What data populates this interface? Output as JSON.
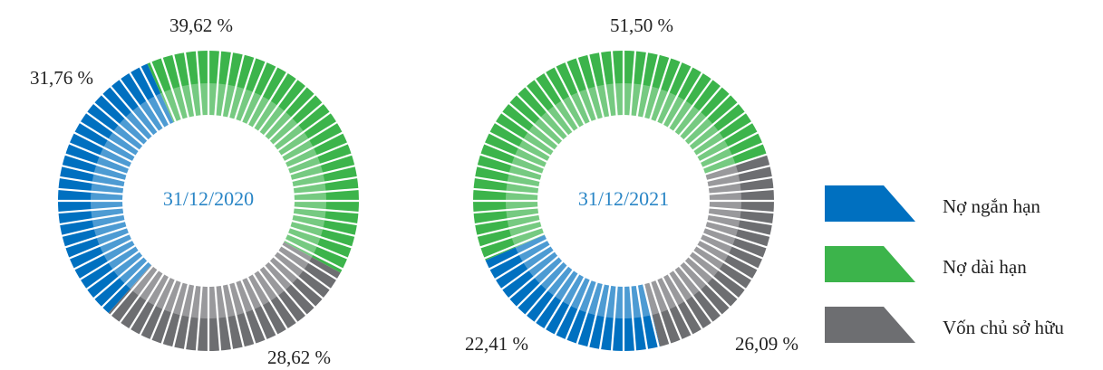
{
  "chart_data": [
    {
      "type": "donut",
      "title": "31/12/2020",
      "categories": [
        "Nợ ngắn hạn",
        "Nợ dài hạn",
        "Vốn chủ sở hữu"
      ],
      "values": [
        31.76,
        39.62,
        28.62
      ],
      "value_labels": [
        "31,76 %",
        "39,62 %",
        "28,62 %"
      ],
      "colors": [
        "#0070c0",
        "#3cb44b",
        "#6d6e71"
      ]
    },
    {
      "type": "donut",
      "title": "31/12/2021",
      "categories": [
        "Nợ ngắn hạn",
        "Nợ dài hạn",
        "Vốn chủ sở hữu"
      ],
      "values": [
        22.41,
        51.5,
        26.09
      ],
      "value_labels": [
        "22,41 %",
        "51,50 %",
        "26,09 %"
      ],
      "colors": [
        "#0070c0",
        "#3cb44b",
        "#6d6e71"
      ]
    }
  ]
}
